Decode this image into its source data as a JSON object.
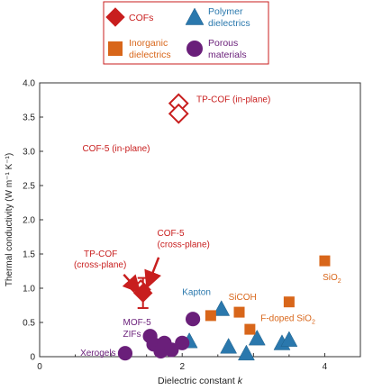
{
  "colors": {
    "cof": "#c81e1e",
    "polymer": "#2a78ad",
    "inorganic": "#d8661a",
    "porous": "#6a1f7a",
    "axis": "#333333",
    "legend_border": "#c81e1e"
  },
  "legend": {
    "entries": [
      {
        "key": "cof",
        "label": "COFs",
        "marker": "diamond"
      },
      {
        "key": "polymer",
        "label": "Polymer dielectrics",
        "marker": "triangle"
      },
      {
        "key": "inorganic",
        "label": "Inorganic dielectrics",
        "marker": "square"
      },
      {
        "key": "porous",
        "label": "Porous materials",
        "marker": "circle"
      }
    ]
  },
  "chart_data": {
    "type": "scatter",
    "xlabel": "Dielectric constant k",
    "ylabel": "Thermal conductivity (W m⁻¹ K⁻¹)",
    "xlim": [
      0,
      4.5
    ],
    "ylim": [
      0,
      4.0
    ],
    "xticks": [
      0,
      2,
      4
    ],
    "yticks": [
      0,
      0.5,
      1.0,
      1.5,
      2.0,
      2.5,
      3.0,
      3.5,
      4.0
    ],
    "xtick_labels": [
      "0",
      "2",
      "4"
    ],
    "ytick_labels": [
      "0",
      "0.5",
      "1.0",
      "1.5",
      "2.0",
      "2.5",
      "3.0",
      "3.5",
      "4.0"
    ],
    "series": [
      {
        "name": "COFs",
        "key": "cof",
        "points": [
          {
            "x": 1.95,
            "y": 3.7,
            "hollow": true
          },
          {
            "x": 1.95,
            "y": 3.55,
            "hollow": true
          },
          {
            "x": 1.42,
            "y": 0.98,
            "hollow": true
          },
          {
            "x": 1.45,
            "y": 0.93,
            "hollow": false,
            "err": 0.22
          }
        ]
      },
      {
        "name": "Polymer dielectrics",
        "key": "polymer",
        "points": [
          {
            "x": 2.1,
            "y": 0.23
          },
          {
            "x": 2.55,
            "y": 0.7
          },
          {
            "x": 2.65,
            "y": 0.15
          },
          {
            "x": 2.9,
            "y": 0.05
          },
          {
            "x": 3.05,
            "y": 0.27
          },
          {
            "x": 3.4,
            "y": 0.2
          },
          {
            "x": 3.5,
            "y": 0.25
          }
        ]
      },
      {
        "name": "Inorganic dielectrics",
        "key": "inorganic",
        "points": [
          {
            "x": 2.4,
            "y": 0.6
          },
          {
            "x": 2.8,
            "y": 0.65
          },
          {
            "x": 2.95,
            "y": 0.4
          },
          {
            "x": 3.5,
            "y": 0.8
          },
          {
            "x": 4.0,
            "y": 1.4
          }
        ]
      },
      {
        "name": "Porous materials",
        "key": "porous",
        "points": [
          {
            "x": 1.2,
            "y": 0.05
          },
          {
            "x": 1.55,
            "y": 0.3
          },
          {
            "x": 1.6,
            "y": 0.18
          },
          {
            "x": 1.7,
            "y": 0.08
          },
          {
            "x": 1.75,
            "y": 0.2
          },
          {
            "x": 1.85,
            "y": 0.1
          },
          {
            "x": 2.0,
            "y": 0.2
          },
          {
            "x": 2.15,
            "y": 0.55
          }
        ]
      }
    ],
    "annotations": [
      {
        "text": "TP-COF  (in-plane)",
        "x": 2.2,
        "y": 3.72,
        "color": "cof"
      },
      {
        "text": "COF-5  (in-plane)",
        "x": 0.6,
        "y": 3.0,
        "color": "cof"
      },
      {
        "text": "COF-5",
        "x": 1.65,
        "y": 1.76,
        "color": "cof"
      },
      {
        "text": "(cross-plane)",
        "x": 1.65,
        "y": 1.6,
        "color": "cof"
      },
      {
        "text": "TP-COF",
        "x": 0.62,
        "y": 1.46,
        "color": "cof"
      },
      {
        "text": "(cross-plane)",
        "x": 0.48,
        "y": 1.3,
        "color": "cof"
      },
      {
        "text": "Kapton",
        "x": 2.0,
        "y": 0.9,
        "color": "polymer"
      },
      {
        "text": "SiCOH",
        "x": 2.65,
        "y": 0.83,
        "color": "inorganic"
      },
      {
        "text": "F-doped SiO",
        "x": 3.1,
        "y": 0.52,
        "color": "inorganic"
      },
      {
        "text": "SiO",
        "x": 3.97,
        "y": 1.12,
        "color": "inorganic"
      },
      {
        "text": "MOF-5",
        "x": 1.17,
        "y": 0.46,
        "color": "porous"
      },
      {
        "text": "ZIFs",
        "x": 1.17,
        "y": 0.29,
        "color": "porous"
      },
      {
        "text": "Xerogels",
        "x": 0.57,
        "y": 0.01,
        "color": "porous"
      }
    ],
    "arrows": [
      {
        "from": [
          1.67,
          1.45
        ],
        "to": [
          1.52,
          1.05
        ]
      },
      {
        "from": [
          1.18,
          1.2
        ],
        "to": [
          1.38,
          0.97
        ]
      }
    ]
  }
}
